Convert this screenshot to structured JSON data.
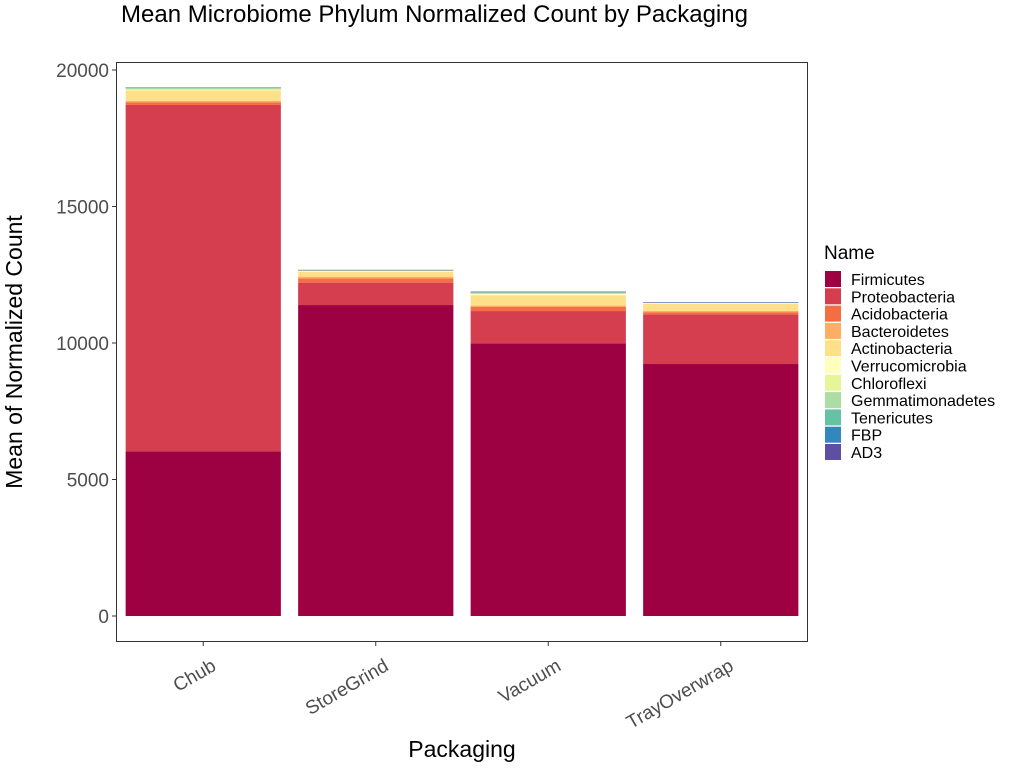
{
  "chart_data": {
    "type": "bar",
    "stacked": true,
    "title": "Mean Microbiome Phylum Normalized Count by Packaging",
    "xlabel": "Packaging",
    "ylabel": "Mean of Normalized Count",
    "ylim": [
      -900,
      20300
    ],
    "yticks": [
      0,
      5000,
      10000,
      15000,
      20000
    ],
    "categories": [
      "Chub",
      "StoreGrind",
      "Vacuum",
      "TrayOverwrap"
    ],
    "legend_title": "Name",
    "legend_position": "right",
    "grid": false,
    "series": [
      {
        "name": "Firmicutes",
        "color": "#9e0142",
        "values": [
          6030,
          11390,
          9990,
          9230
        ]
      },
      {
        "name": "Proteobacteria",
        "color": "#d53e4f",
        "values": [
          12690,
          820,
          1180,
          1820
        ]
      },
      {
        "name": "Acidobacteria",
        "color": "#f46d43",
        "values": [
          100,
          160,
          160,
          80
        ]
      },
      {
        "name": "Bacteroidetes",
        "color": "#fdae61",
        "values": [
          50,
          60,
          40,
          50
        ]
      },
      {
        "name": "Actinobacteria",
        "color": "#fee08b",
        "values": [
          380,
          180,
          380,
          250
        ]
      },
      {
        "name": "Verrucomicrobia",
        "color": "#ffffbf",
        "values": [
          20,
          30,
          50,
          30
        ]
      },
      {
        "name": "Chloroflexi",
        "color": "#e6f598",
        "values": [
          20,
          20,
          10,
          10
        ]
      },
      {
        "name": "Gemmatimonadetes",
        "color": "#abdda4",
        "values": [
          60,
          10,
          60,
          10
        ]
      },
      {
        "name": "Tenericutes",
        "color": "#66c2a5",
        "values": [
          5,
          5,
          5,
          5
        ]
      },
      {
        "name": "FBP",
        "color": "#3288bd",
        "values": [
          2,
          2,
          2,
          2
        ]
      },
      {
        "name": "AD3",
        "color": "#5e4fa2",
        "values": [
          1,
          1,
          1,
          1
        ]
      }
    ]
  }
}
